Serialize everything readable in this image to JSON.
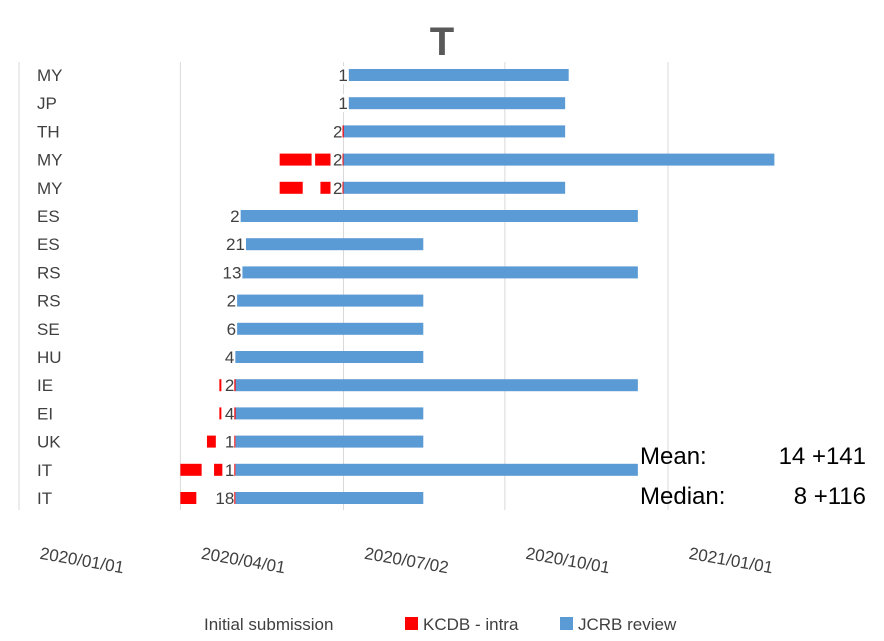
{
  "chart_data": {
    "type": "bar",
    "orientation": "horizontal",
    "title": "T",
    "x_axis": {
      "type": "date",
      "ticks": [
        "2020/01/01",
        "2020/04/01",
        "2020/07/02",
        "2020/10/01",
        "2021/01/01"
      ],
      "range": [
        "2020/01/01",
        "2021/01/01"
      ],
      "gridlines": true
    },
    "categories": [
      "MY",
      "JP",
      "TH",
      "MY",
      "MY",
      "ES",
      "ES",
      "RS",
      "RS",
      "SE",
      "HU",
      "IE",
      "EI",
      "UK",
      "IT",
      "IT"
    ],
    "bar_labels": [
      "1",
      "1",
      "2",
      "2",
      "2",
      "2",
      "21",
      "13",
      "2",
      "6",
      "4",
      "2",
      "4",
      "1",
      "1",
      "18"
    ],
    "series": [
      {
        "name": "Initial submission",
        "color": "transparent",
        "segments": [
          [
            "2020/07/05",
            "2020/07/05"
          ],
          [
            "2020/07/05",
            "2020/07/05"
          ],
          [
            "2020/06/30",
            "2020/06/30"
          ],
          [
            "2020/05/27",
            "2020/05/27"
          ],
          [
            "2020/05/27",
            "2020/05/27"
          ],
          [
            "2020/05/05",
            "2020/05/05"
          ],
          [
            "2020/05/08",
            "2020/05/08"
          ],
          [
            "2020/05/06",
            "2020/05/06"
          ],
          [
            "2020/05/03",
            "2020/05/03"
          ],
          [
            "2020/05/03",
            "2020/05/03"
          ],
          [
            "2020/05/02",
            "2020/05/02"
          ],
          [
            "2020/04/23",
            "2020/04/23"
          ],
          [
            "2020/04/23",
            "2020/04/23"
          ],
          [
            "2020/04/16",
            "2020/04/16"
          ],
          [
            "2020/04/01",
            "2020/04/01"
          ],
          [
            "2020/04/01",
            "2020/04/01"
          ]
        ]
      },
      {
        "name": "KCDB - intra",
        "color": "#ff0000",
        "segments": [
          [],
          [],
          [
            [
              "2020/06/30",
              "2020/07/01"
            ],
            [
              "2020/07/01",
              "2020/07/02"
            ]
          ],
          [
            [
              "2020/05/27",
              "2020/06/14"
            ],
            [
              "2020/06/16",
              "2020/07/02"
            ]
          ],
          [
            [
              "2020/05/27",
              "2020/06/09"
            ],
            [
              "2020/06/19",
              "2020/07/02"
            ]
          ],
          [],
          [],
          [],
          [],
          [],
          [],
          [
            [
              "2020/04/23",
              "2020/04/24"
            ],
            [
              "2020/05/01",
              "2020/05/02"
            ]
          ],
          [
            [
              "2020/04/23",
              "2020/04/24"
            ],
            [
              "2020/05/01",
              "2020/05/02"
            ]
          ],
          [
            [
              "2020/04/16",
              "2020/04/21"
            ],
            [
              "2020/04/28",
              "2020/05/02"
            ]
          ],
          [
            [
              "2020/04/01",
              "2020/04/13"
            ],
            [
              "2020/04/20",
              "2020/05/02"
            ]
          ],
          [
            [
              "2020/04/01",
              "2020/04/10"
            ],
            [
              "2020/04/23",
              "2020/05/02"
            ]
          ]
        ]
      },
      {
        "name": "JCRB review",
        "color": "#5b9bd5",
        "segments": [
          [
            "2020/07/05",
            "2020/11/06"
          ],
          [
            "2020/07/05",
            "2020/11/04"
          ],
          [
            "2020/07/02",
            "2020/11/04"
          ],
          [
            "2020/07/02",
            "2021/03/02"
          ],
          [
            "2020/07/02",
            "2020/11/04"
          ],
          [
            "2020/05/05",
            "2020/12/15"
          ],
          [
            "2020/05/08",
            "2020/08/16"
          ],
          [
            "2020/05/06",
            "2020/12/15"
          ],
          [
            "2020/05/03",
            "2020/08/16"
          ],
          [
            "2020/05/03",
            "2020/08/16"
          ],
          [
            "2020/05/02",
            "2020/08/16"
          ],
          [
            "2020/05/02",
            "2020/12/15"
          ],
          [
            "2020/05/02",
            "2020/08/16"
          ],
          [
            "2020/05/02",
            "2020/08/16"
          ],
          [
            "2020/05/02",
            "2020/12/15"
          ],
          [
            "2020/05/02",
            "2020/08/16"
          ]
        ]
      }
    ],
    "annotations": {
      "mean_label": "Mean:",
      "mean_value": "14 +141",
      "median_label": "Median:",
      "median_value": "8 +116"
    },
    "legend": {
      "position": "bottom",
      "items": [
        {
          "name": "Initial submission",
          "color": "transparent"
        },
        {
          "name": "KCDB - intra",
          "color": "#ff0000"
        },
        {
          "name": "JCRB review",
          "color": "#5b9bd5"
        }
      ]
    }
  }
}
